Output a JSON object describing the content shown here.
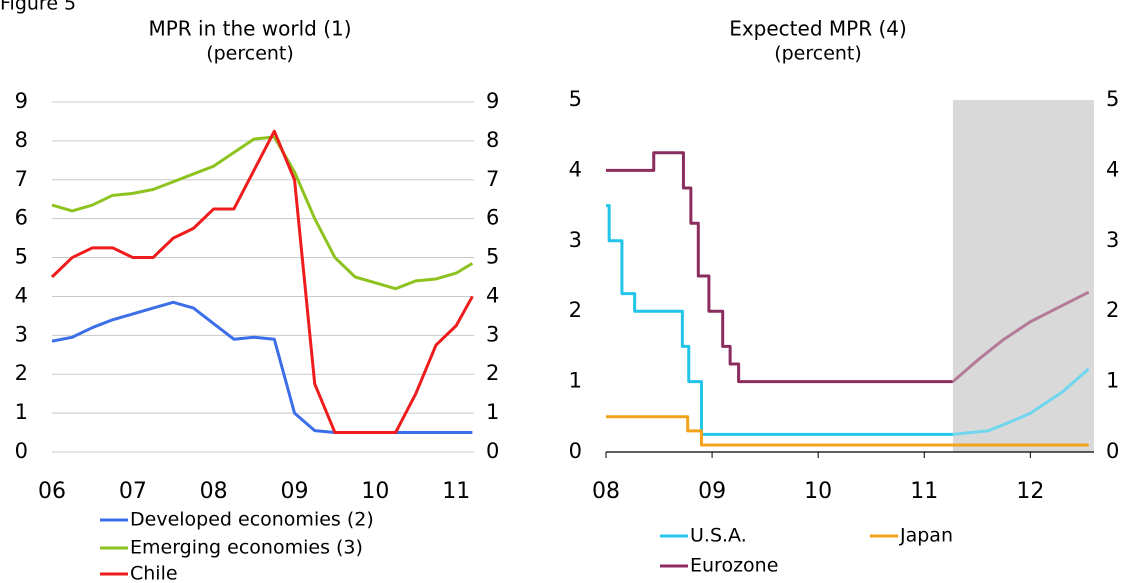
{
  "header": "Figure 5",
  "chart_data": [
    {
      "type": "line",
      "title": "MPR in the world (1)",
      "subtitle": "(percent)",
      "x": [
        2006,
        2006.25,
        2006.5,
        2006.75,
        2007,
        2007.25,
        2007.5,
        2007.75,
        2008,
        2008.25,
        2008.5,
        2008.75,
        2009,
        2009.25,
        2009.5,
        2009.75,
        2010,
        2010.25,
        2010.5,
        2010.75,
        2011,
        2011.2
      ],
      "series": [
        {
          "name": "Developed economies (2)",
          "color": "#3b6ee8",
          "values": [
            2.85,
            2.95,
            3.2,
            3.4,
            3.55,
            3.7,
            3.85,
            3.7,
            3.3,
            2.9,
            2.95,
            2.9,
            1.0,
            0.55,
            0.5,
            0.5,
            0.5,
            0.5,
            0.5,
            0.5,
            0.5,
            0.5
          ]
        },
        {
          "name": "Emerging economies (3)",
          "color": "#8dc21f",
          "values": [
            6.35,
            6.2,
            6.35,
            6.6,
            6.65,
            6.75,
            6.95,
            7.15,
            7.35,
            7.7,
            8.05,
            8.1,
            7.2,
            6.0,
            5.0,
            4.5,
            4.35,
            4.2,
            4.4,
            4.45,
            4.6,
            4.85
          ]
        },
        {
          "name": "Chile",
          "color": "#ee1c1c",
          "values": [
            4.5,
            5.0,
            5.25,
            5.25,
            5.0,
            5.0,
            5.5,
            5.75,
            6.25,
            6.25,
            7.25,
            8.25,
            7.0,
            1.75,
            0.5,
            0.5,
            0.5,
            0.5,
            1.5,
            2.75,
            3.25,
            4.0
          ]
        }
      ],
      "xlim": [
        2006,
        2011.22
      ],
      "xticks": [
        {
          "value": 2006,
          "label": "06"
        },
        {
          "value": 2007,
          "label": "07"
        },
        {
          "value": 2008,
          "label": "08"
        },
        {
          "value": 2009,
          "label": "09"
        },
        {
          "value": 2010,
          "label": "10"
        },
        {
          "value": 2011,
          "label": "11"
        }
      ],
      "ylim": [
        0,
        9
      ],
      "yticks": [
        0,
        1,
        2,
        3,
        4,
        5,
        6,
        7,
        8,
        9
      ],
      "y2lim": [
        0,
        9
      ],
      "y2ticks": [
        0,
        1,
        2,
        3,
        4,
        5,
        6,
        7,
        8,
        9
      ],
      "grid": true
    },
    {
      "type": "line",
      "title": "Expected MPR (4)",
      "subtitle": "(percent)",
      "shade_from": 2011.27,
      "series": [
        {
          "name": "U.S.A.",
          "color": "#22c4e8",
          "forecast_color": "#6fd6ee",
          "x": [
            2008,
            2008.03,
            2008.03,
            2008.15,
            2008.15,
            2008.27,
            2008.27,
            2008.72,
            2008.72,
            2008.78,
            2008.78,
            2008.9,
            2008.9,
            2011.27,
            2011.6,
            2011.8,
            2012,
            2012.3,
            2012.55
          ],
          "values": [
            3.5,
            3.5,
            3.0,
            3.0,
            2.25,
            2.25,
            2.0,
            2.0,
            1.5,
            1.5,
            1.0,
            1.0,
            0.25,
            0.25,
            0.3,
            0.42,
            0.55,
            0.85,
            1.18
          ]
        },
        {
          "name": "Japan",
          "color": "#f5a21b",
          "forecast_color": "#f5a21b",
          "x": [
            2008,
            2008.77,
            2008.77,
            2008.9,
            2008.9,
            2011.27,
            2012.55
          ],
          "values": [
            0.5,
            0.5,
            0.3,
            0.3,
            0.1,
            0.1,
            0.1
          ]
        },
        {
          "name": "Eurozone",
          "color": "#8b2c5e",
          "forecast_color": "#b47a9a",
          "x": [
            2008,
            2008.45,
            2008.45,
            2008.73,
            2008.73,
            2008.8,
            2008.8,
            2008.87,
            2008.87,
            2008.97,
            2008.97,
            2009.1,
            2009.1,
            2009.17,
            2009.17,
            2009.25,
            2009.25,
            2011.27,
            2011.5,
            2011.75,
            2012,
            2012.3,
            2012.55
          ],
          "values": [
            4.0,
            4.0,
            4.25,
            4.25,
            3.75,
            3.75,
            3.25,
            3.25,
            2.5,
            2.5,
            2.0,
            2.0,
            1.5,
            1.5,
            1.25,
            1.25,
            1.0,
            1.0,
            1.3,
            1.6,
            1.85,
            2.08,
            2.27
          ]
        }
      ],
      "xlim": [
        2008,
        2012.6
      ],
      "xticks": [
        {
          "value": 2008,
          "label": "08"
        },
        {
          "value": 2009,
          "label": "09"
        },
        {
          "value": 2010,
          "label": "10"
        },
        {
          "value": 2011,
          "label": "11"
        },
        {
          "value": 2012,
          "label": "12"
        }
      ],
      "ylim": [
        0,
        5
      ],
      "yticks": [
        0,
        1,
        2,
        3,
        4,
        5
      ],
      "y2lim": [
        0,
        5
      ],
      "y2ticks": [
        0,
        1,
        2,
        3,
        4,
        5
      ],
      "grid": false
    }
  ]
}
